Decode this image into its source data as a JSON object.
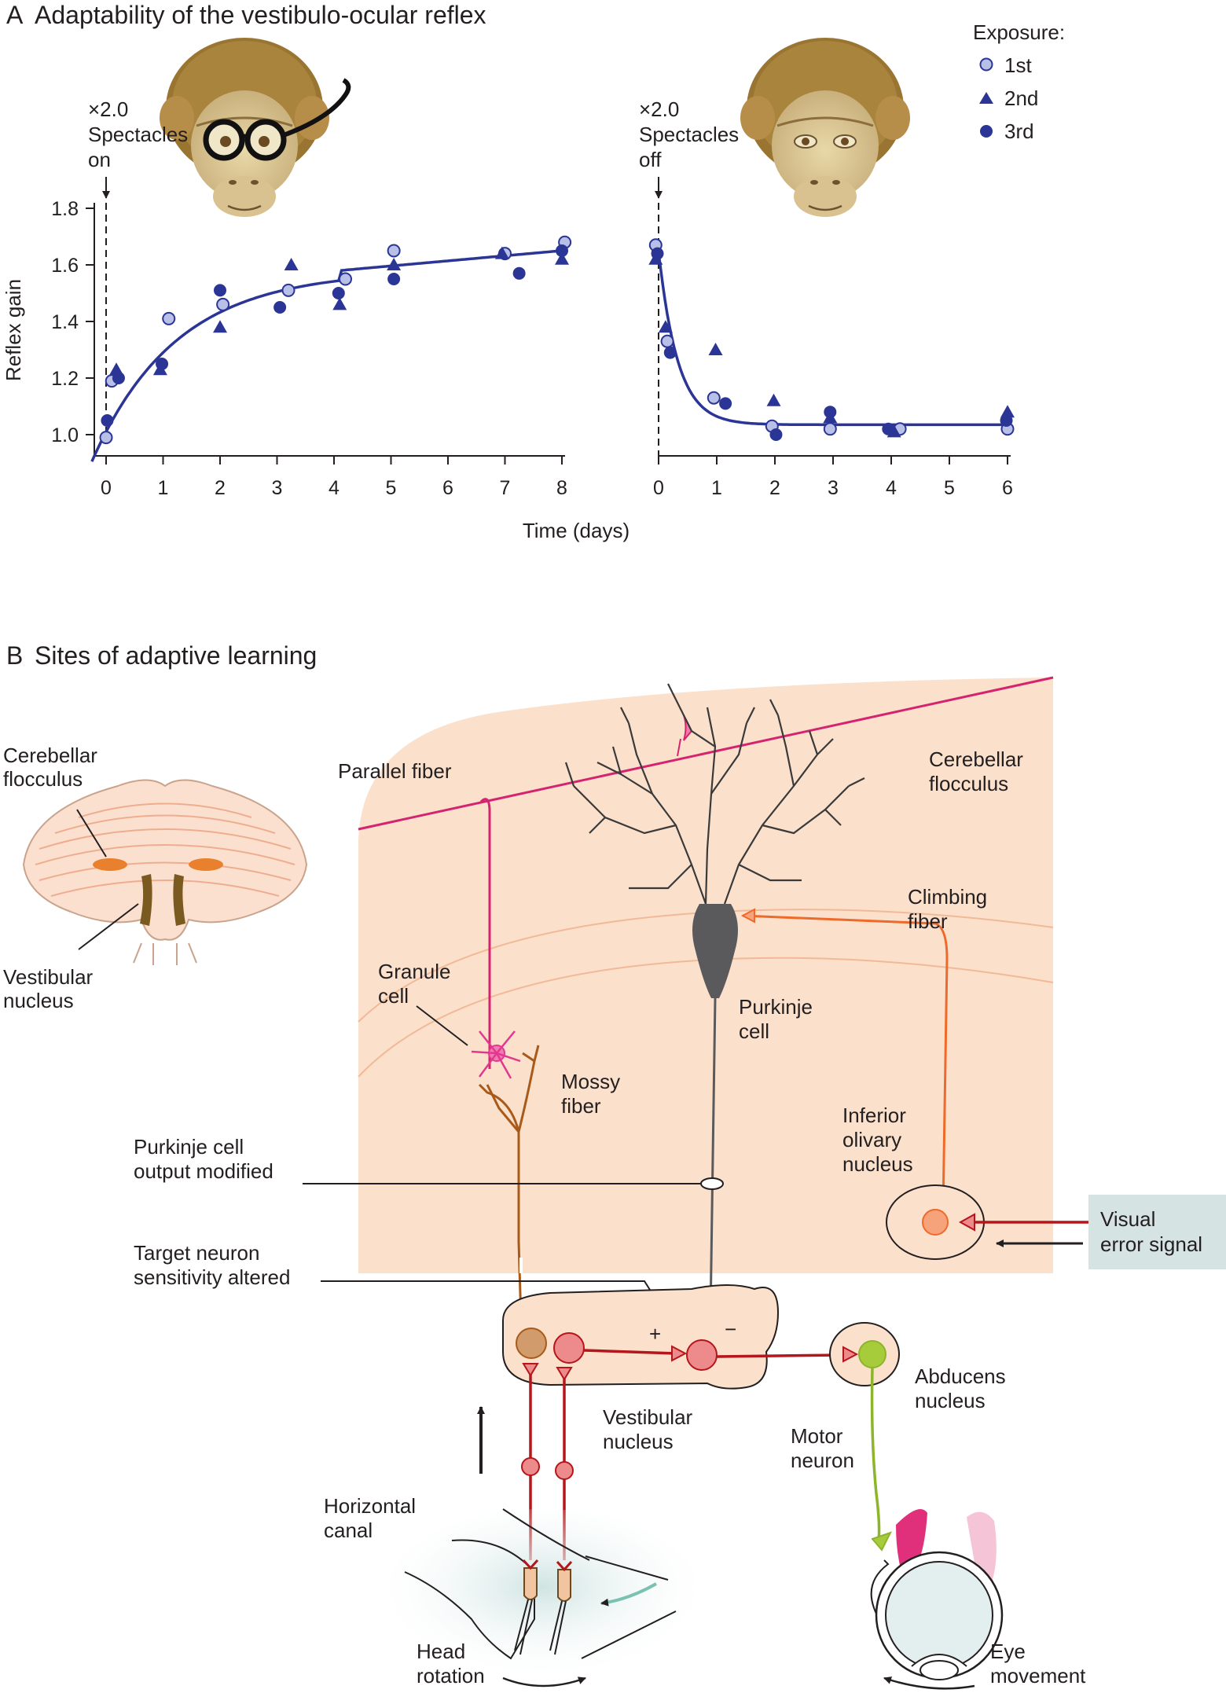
{
  "panel_a": {
    "letter": "A",
    "title": "Adaptability of the vestibulo-ocular reflex",
    "legend": {
      "title": "Exposure:",
      "items": [
        "1st",
        "2nd",
        "3rd"
      ]
    },
    "annotation_on": [
      "×2.0",
      "Spectacles",
      "on"
    ],
    "annotation_off": [
      "×2.0",
      "Spectacles",
      "off"
    ],
    "ylabel": "Reflex gain",
    "xlabel": "Time (days)",
    "y_ticks": [
      "1.0",
      "1.2",
      "1.4",
      "1.6",
      "1.8"
    ],
    "x_ticks_on": [
      "0",
      "1",
      "2",
      "3",
      "4",
      "5",
      "6",
      "7",
      "8"
    ],
    "x_ticks_off": [
      "0",
      "1",
      "2",
      "3",
      "4",
      "5",
      "6"
    ],
    "colors": {
      "dark": "#2b3595",
      "light": "#b9c0e8",
      "curve": "#2b3595"
    }
  },
  "chart_data": [
    {
      "type": "scatter",
      "ylabel": "Reflex gain",
      "xlabel": "Time (days)",
      "xlim": [
        0,
        8
      ],
      "ylim": [
        1.0,
        1.8
      ],
      "series": [
        {
          "name": "1st",
          "x": [
            0,
            0.1,
            1.1,
            2.05,
            3.2,
            4.2,
            5.05,
            7.0,
            8.05
          ],
          "y": [
            0.99,
            1.19,
            1.41,
            1.46,
            1.51,
            1.55,
            1.65,
            1.64,
            1.68
          ]
        },
        {
          "name": "2nd",
          "x": [
            0.18,
            0.95,
            2.0,
            3.25,
            4.1,
            5.05,
            6.95,
            8.0
          ],
          "y": [
            1.23,
            1.23,
            1.38,
            1.6,
            1.46,
            1.6,
            1.64,
            1.62
          ]
        },
        {
          "name": "3rd",
          "x": [
            0.02,
            0.22,
            0.98,
            2.0,
            3.05,
            4.08,
            5.05,
            7.25,
            8.0
          ],
          "y": [
            1.05,
            1.2,
            1.25,
            1.51,
            1.45,
            1.5,
            1.55,
            1.57,
            1.65
          ]
        }
      ]
    },
    {
      "type": "scatter",
      "xlim": [
        0,
        6
      ],
      "ylim": [
        1.0,
        1.8
      ],
      "series": [
        {
          "name": "1st",
          "x": [
            -0.05,
            0.15,
            0.95,
            1.95,
            2.95,
            4.15,
            6.0
          ],
          "y": [
            1.67,
            1.33,
            1.13,
            1.03,
            1.02,
            1.02,
            1.02
          ]
        },
        {
          "name": "2nd",
          "x": [
            -0.05,
            0.12,
            0.98,
            1.98,
            2.95,
            4.05,
            6.0
          ],
          "y": [
            1.62,
            1.38,
            1.3,
            1.12,
            1.06,
            1.01,
            1.08
          ]
        },
        {
          "name": "3rd",
          "x": [
            -0.02,
            0.2,
            1.15,
            2.02,
            2.95,
            3.95,
            5.98
          ],
          "y": [
            1.64,
            1.29,
            1.11,
            1.0,
            1.08,
            1.02,
            1.05
          ]
        }
      ]
    }
  ],
  "panel_b": {
    "letter": "B",
    "title": "Sites of adaptive learning",
    "labels": {
      "cerebellar_flocculus_small": [
        "Cerebellar",
        "flocculus"
      ],
      "vestibular_nucleus_small": [
        "Vestibular",
        "nucleus"
      ],
      "parallel_fiber": "Parallel fiber",
      "cerebellar_flocculus": [
        "Cerebellar",
        "flocculus"
      ],
      "climbing_fiber": [
        "Climbing",
        "fiber"
      ],
      "granule_cell": [
        "Granule",
        "cell"
      ],
      "purkinje_cell": [
        "Purkinje",
        "cell"
      ],
      "mossy_fiber": [
        "Mossy",
        "fiber"
      ],
      "inferior_olivary": [
        "Inferior",
        "olivary",
        "nucleus"
      ],
      "purkinje_output": [
        "Purkinje cell",
        "output modified"
      ],
      "target_neuron": [
        "Target neuron",
        "sensitivity altered"
      ],
      "visual_error": [
        "Visual",
        "error signal"
      ],
      "plus": "+",
      "minus": "−",
      "vestibular_nucleus": [
        "Vestibular",
        "nucleus"
      ],
      "abducens_nucleus": [
        "Abducens",
        "nucleus"
      ],
      "motor_neuron": [
        "Motor",
        "neuron"
      ],
      "horizontal_canal": [
        "Horizontal",
        "canal"
      ],
      "head_rotation": [
        "Head",
        "rotation"
      ],
      "eye_movement": [
        "Eye",
        "movement"
      ]
    },
    "colors": {
      "flocculus_bg": "#fbe0cc",
      "parallel": "#d4246f",
      "granule": "#e2388f",
      "mossy": "#a85a1a",
      "purkinje": "#5a5a5c",
      "climbing": "#ee6a2a",
      "neuron_red": "#b5161b",
      "neuron_fill": "#ec8a8c",
      "abducens": "#8db52b",
      "visual_box": "#d6e3e3",
      "canal": "#d3e6e4"
    }
  }
}
